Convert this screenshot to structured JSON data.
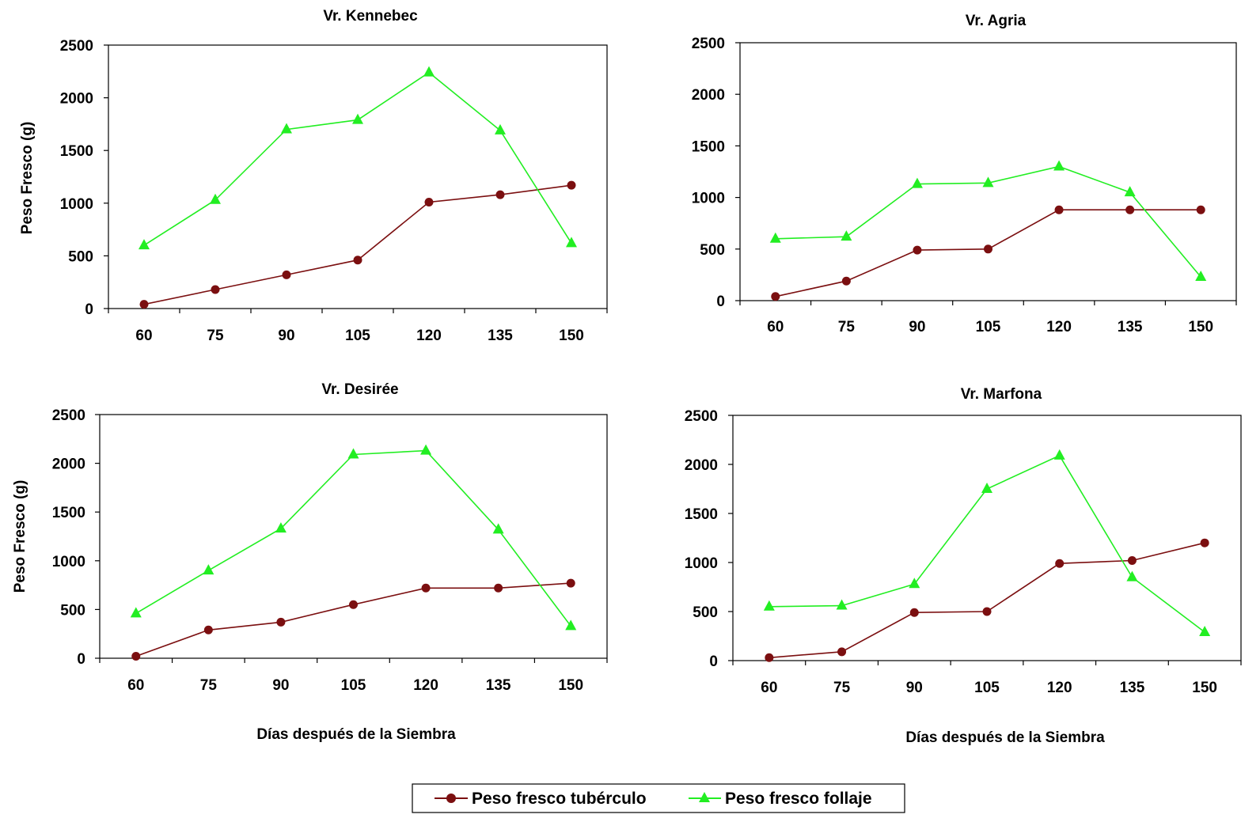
{
  "legend": {
    "items": [
      {
        "label": "Peso fresco tubérculo",
        "color": "#7b0f10",
        "marker": "circle"
      },
      {
        "label": "Peso fresco follaje",
        "color": "#22ee22",
        "marker": "triangle"
      }
    ]
  },
  "chart_data": [
    {
      "type": "line",
      "title": "Vr. Kennebec",
      "xlabel": "",
      "ylabel": "Peso Fresco  (g)",
      "categories": [
        "60",
        "75",
        "90",
        "105",
        "120",
        "135",
        "150"
      ],
      "ylim": [
        0,
        2500
      ],
      "yticks": [
        "0",
        "500",
        "1000",
        "1500",
        "2000",
        "2500"
      ],
      "series": [
        {
          "name": "Peso fresco tubérculo",
          "color": "#7b0f10",
          "marker": "circle",
          "values": [
            40,
            180,
            320,
            460,
            1010,
            1080,
            1170
          ]
        },
        {
          "name": "Peso fresco follaje",
          "color": "#22ee22",
          "marker": "triangle",
          "values": [
            600,
            1030,
            1700,
            1790,
            2240,
            1690,
            620
          ]
        }
      ]
    },
    {
      "type": "line",
      "title": "Vr. Agria",
      "xlabel": "",
      "ylabel": "",
      "categories": [
        "60",
        "75",
        "90",
        "105",
        "120",
        "135",
        "150"
      ],
      "ylim": [
        0,
        2500
      ],
      "yticks": [
        "0",
        "500",
        "1000",
        "1500",
        "2000",
        "2500"
      ],
      "series": [
        {
          "name": "Peso fresco tubérculo",
          "color": "#7b0f10",
          "marker": "circle",
          "values": [
            40,
            190,
            490,
            500,
            880,
            880,
            880
          ]
        },
        {
          "name": "Peso fresco follaje",
          "color": "#22ee22",
          "marker": "triangle",
          "values": [
            600,
            620,
            1130,
            1140,
            1300,
            1050,
            230
          ]
        }
      ]
    },
    {
      "type": "line",
      "title": "Vr. Desirée",
      "xlabel": "Días después de la Siembra",
      "ylabel": "Peso Fresco  (g)",
      "categories": [
        "60",
        "75",
        "90",
        "105",
        "120",
        "135",
        "150"
      ],
      "ylim": [
        0,
        2500
      ],
      "yticks": [
        "0",
        "500",
        "1000",
        "1500",
        "2000",
        "2500"
      ],
      "series": [
        {
          "name": "Peso fresco tubérculo",
          "color": "#7b0f10",
          "marker": "circle",
          "values": [
            20,
            290,
            370,
            550,
            720,
            720,
            770
          ]
        },
        {
          "name": "Peso fresco follaje",
          "color": "#22ee22",
          "marker": "triangle",
          "values": [
            460,
            900,
            1330,
            2090,
            2130,
            1320,
            330
          ]
        }
      ]
    },
    {
      "type": "line",
      "title": "Vr. Marfona",
      "xlabel": "Días después de la Siembra",
      "ylabel": "",
      "categories": [
        "60",
        "75",
        "90",
        "105",
        "120",
        "135",
        "150"
      ],
      "ylim": [
        0,
        2500
      ],
      "yticks": [
        "0",
        "500",
        "1000",
        "1500",
        "2000",
        "2500"
      ],
      "series": [
        {
          "name": "Peso fresco tubérculo",
          "color": "#7b0f10",
          "marker": "circle",
          "values": [
            30,
            90,
            490,
            500,
            990,
            1020,
            1200
          ]
        },
        {
          "name": "Peso fresco follaje",
          "color": "#22ee22",
          "marker": "triangle",
          "values": [
            550,
            560,
            780,
            1750,
            2090,
            850,
            290
          ]
        }
      ]
    }
  ]
}
